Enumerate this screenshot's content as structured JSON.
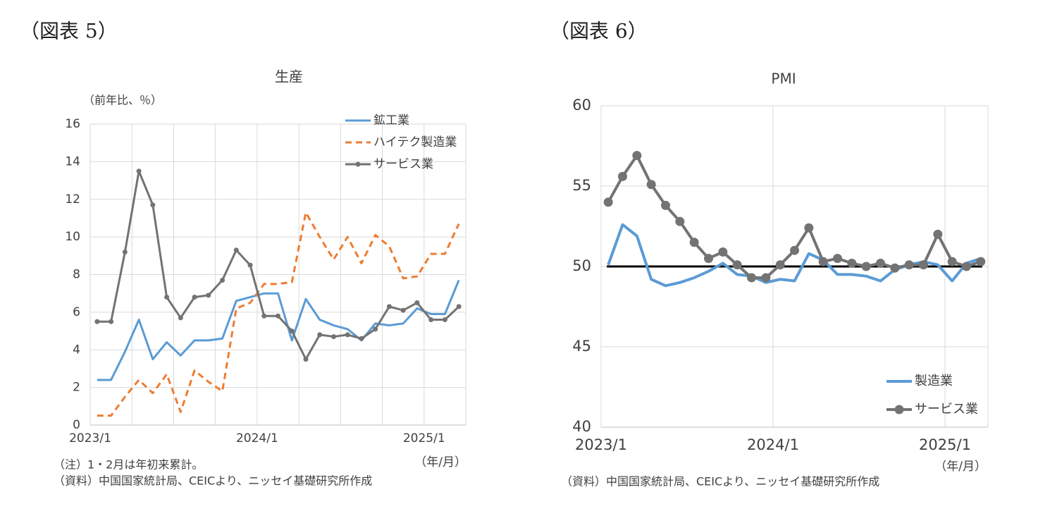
{
  "chart_data": [
    {
      "type": "line",
      "figure_label": "（図表 5）",
      "title": "生産",
      "y_label": "（前年比、％）",
      "x_label": "（年/月）",
      "notes": [
        "（注）1・2月は年初来累計。",
        "（資料）中国国家統計局、CEICより、ニッセイ基礎研究所作成"
      ],
      "categories": [
        "2023/1",
        null,
        null,
        null,
        null,
        null,
        null,
        null,
        null,
        null,
        null,
        null,
        "2024/1",
        null,
        null,
        null,
        null,
        null,
        null,
        null,
        null,
        null,
        null,
        null,
        "2025/1",
        null,
        null
      ],
      "ylim": [
        0,
        16
      ],
      "yticks": [
        0,
        2,
        4,
        6,
        8,
        10,
        12,
        14,
        16
      ],
      "grid": true,
      "legend": "top-right",
      "series": [
        {
          "name": "鉱工業",
          "color": "#5b9bd5",
          "style": "solid",
          "markers": false,
          "values": [
            2.4,
            2.4,
            3.9,
            5.6,
            3.5,
            4.4,
            3.7,
            4.5,
            4.5,
            4.6,
            6.6,
            6.8,
            7.0,
            7.0,
            4.5,
            6.7,
            5.6,
            5.3,
            5.1,
            4.5,
            5.4,
            5.3,
            5.4,
            6.2,
            5.9,
            5.9,
            7.7
          ]
        },
        {
          "name": "ハイテク製造業",
          "color": "#ed7d31",
          "style": "dashed",
          "markers": false,
          "values": [
            0.5,
            0.5,
            1.5,
            2.4,
            1.7,
            2.7,
            0.7,
            2.9,
            2.3,
            1.8,
            6.2,
            6.5,
            7.5,
            7.5,
            7.6,
            11.3,
            10.0,
            8.8,
            10.0,
            8.6,
            10.1,
            9.5,
            7.8,
            7.9,
            9.1,
            9.1,
            10.7
          ]
        },
        {
          "name": "サービス業",
          "color": "#737373",
          "style": "solid",
          "markers": true,
          "values": [
            5.5,
            5.5,
            9.2,
            13.5,
            11.7,
            6.8,
            5.7,
            6.8,
            6.9,
            7.7,
            9.3,
            8.5,
            5.8,
            5.8,
            5.0,
            3.5,
            4.8,
            4.7,
            4.8,
            4.6,
            5.1,
            6.3,
            6.1,
            6.5,
            5.6,
            5.6,
            6.3
          ]
        }
      ]
    },
    {
      "type": "line",
      "figure_label": "（図表 6）",
      "title": "PMI",
      "x_label": "（年/月）",
      "notes": [
        "（資料）中国国家統計局、CEICより、ニッセイ基礎研究所作成"
      ],
      "categories": [
        "2023/1",
        null,
        null,
        null,
        null,
        null,
        null,
        null,
        null,
        null,
        null,
        null,
        "2024/1",
        null,
        null,
        null,
        null,
        null,
        null,
        null,
        null,
        null,
        null,
        null,
        "2025/1",
        null,
        null
      ],
      "ylim": [
        40,
        60
      ],
      "yticks": [
        40,
        45,
        50,
        55,
        60
      ],
      "grid": true,
      "legend": "bottom-right",
      "reference_line": 50,
      "series": [
        {
          "name": "製造業",
          "color": "#5b9bd5",
          "style": "solid",
          "markers": false,
          "values": [
            50.1,
            52.6,
            51.9,
            49.2,
            48.8,
            49.0,
            49.3,
            49.7,
            50.2,
            49.5,
            49.4,
            49.0,
            49.2,
            49.1,
            50.8,
            50.4,
            49.5,
            49.5,
            49.4,
            49.1,
            49.8,
            50.1,
            50.3,
            50.1,
            49.1,
            50.2,
            50.5
          ]
        },
        {
          "name": "サービス業",
          "color": "#737373",
          "style": "solid",
          "markers": true,
          "values": [
            54.0,
            55.6,
            56.9,
            55.1,
            53.8,
            52.8,
            51.5,
            50.5,
            50.9,
            50.1,
            49.3,
            49.3,
            50.1,
            51.0,
            52.4,
            50.3,
            50.5,
            50.2,
            50.0,
            50.2,
            49.9,
            50.1,
            50.1,
            52.0,
            50.3,
            50.0,
            50.3
          ]
        }
      ]
    }
  ]
}
